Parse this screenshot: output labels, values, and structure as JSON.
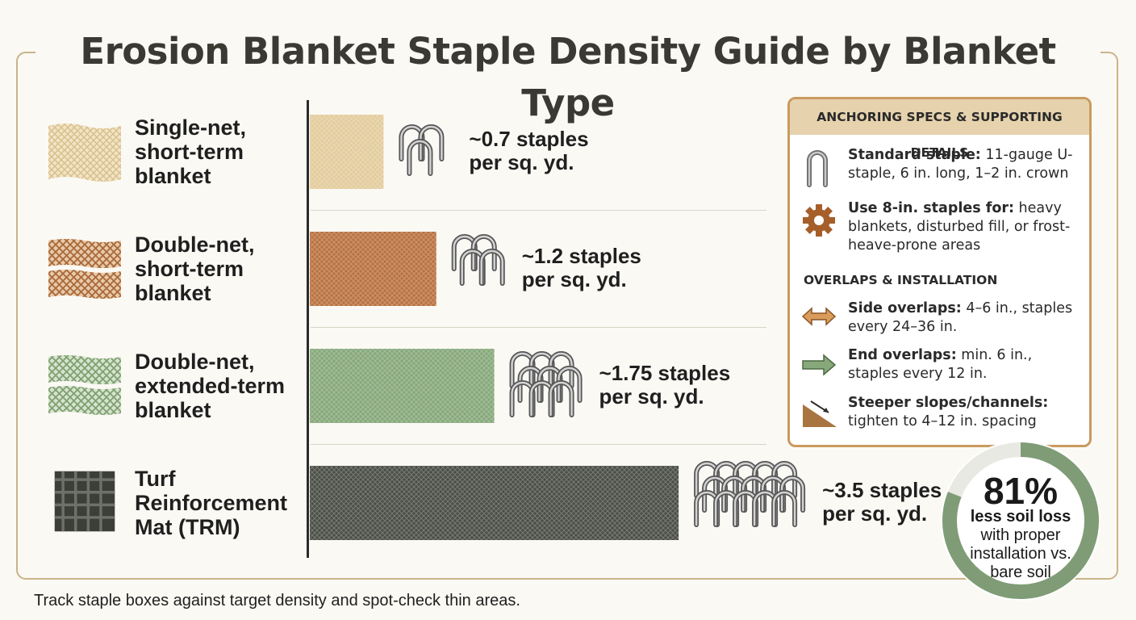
{
  "title": "Erosion Blanket Staple Density Guide by Blanket Type",
  "chart_data": {
    "type": "bar",
    "orientation": "horizontal",
    "categories": [
      "Single-net, short-term blanket",
      "Double-net, short-term blanket",
      "Double-net, extended-term blanket",
      "Turf Reinforcement Mat (TRM)"
    ],
    "category_lines": [
      [
        "Single-net,",
        "short-term",
        "blanket"
      ],
      [
        "Double-net,",
        "short-term",
        "blanket"
      ],
      [
        "Double-net,",
        "extended-term",
        "blanket"
      ],
      [
        "Turf",
        "Reinforcement",
        "Mat (TRM)"
      ]
    ],
    "values": [
      0.7,
      1.2,
      1.75,
      3.5
    ],
    "value_labels": [
      [
        "~0.7 staples",
        "per sq. yd."
      ],
      [
        "~1.2 staples",
        "per sq. yd."
      ],
      [
        "~1.75 staples",
        "per sq. yd."
      ],
      [
        "~3.5 staples",
        "per sq. yd."
      ]
    ],
    "staple_icon_counts": [
      3,
      4,
      9,
      15
    ],
    "colors": [
      "#e3cc9c",
      "#b9723f",
      "#86a87a",
      "#4a4e45"
    ],
    "xlim": [
      0,
      3.5
    ],
    "grid": false
  },
  "panel": {
    "heading": "ANCHORING SPECS & SUPPORTING DETAILS",
    "items": [
      {
        "icon": "u-staple-icon",
        "bold": "Standard staple:",
        "text": " 11-gauge U-staple, 6 in. long, 1–2 in. crown"
      },
      {
        "icon": "gear-icon",
        "bold": "Use 8-in. staples for:",
        "text": " heavy blankets, disturbed fill, or frost-heave-prone areas"
      }
    ],
    "subheading": "OVERLAPS & INSTALLATION",
    "overlaps": [
      {
        "icon": "double-arrow-icon",
        "bold": "Side overlaps:",
        "text": " 4–6 in., staples every 24–36 in."
      },
      {
        "icon": "right-arrow-icon",
        "bold": "End overlaps:",
        "text": " min. 6 in., staples every 12 in."
      },
      {
        "icon": "slope-icon",
        "bold": "Steeper slopes/channels:",
        "text": " tighten to 4–12 in. spacing"
      }
    ]
  },
  "stat": {
    "percent": "81%",
    "fraction": 0.81,
    "bold": "less soil loss",
    "text": "with proper installation vs. bare soil",
    "ring_color": "#7f9c76"
  },
  "footer": "Track staple boxes against target density and spot-check thin areas."
}
